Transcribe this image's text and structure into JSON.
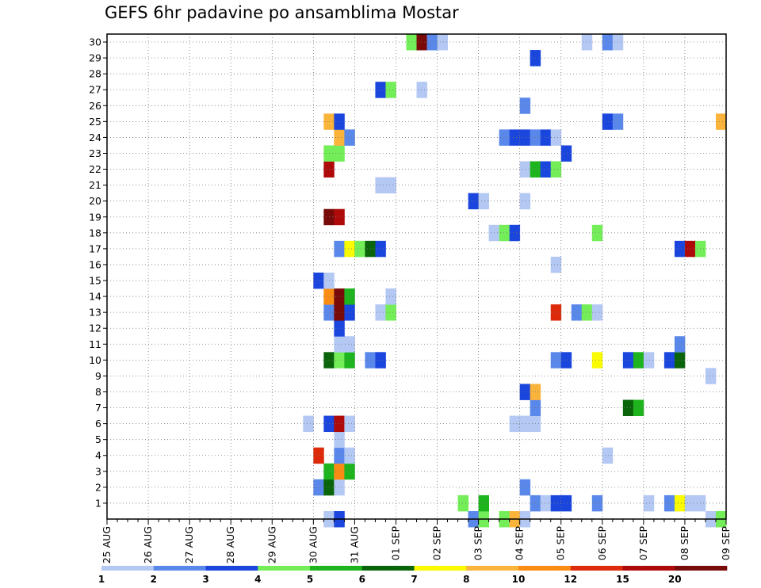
{
  "chart_data": {
    "type": "heatmap",
    "title": "GEFS 6hr padavine po ansamblima Mostar",
    "xlabel": "",
    "ylabel": "",
    "x_tick_labels": [
      "25 AUG",
      "26 AUG",
      "27 AUG",
      "28 AUG",
      "29 AUG",
      "30 AUG",
      "31 AUG",
      "01 SEP",
      "02 SEP",
      "03 SEP",
      "04 SEP",
      "05 SEP",
      "06 SEP",
      "07 SEP",
      "08 SEP",
      "09 SEP"
    ],
    "y_tick_labels": [
      "1",
      "2",
      "3",
      "4",
      "5",
      "6",
      "7",
      "8",
      "9",
      "10",
      "11",
      "12",
      "13",
      "14",
      "15",
      "16",
      "17",
      "18",
      "19",
      "20",
      "21",
      "22",
      "23",
      "24",
      "25",
      "26",
      "27",
      "28",
      "29",
      "30"
    ],
    "x_range_days": [
      0,
      15
    ],
    "y_range_members": [
      0,
      30
    ],
    "grid": true,
    "colorbar": {
      "levels": [
        "1",
        "2",
        "3",
        "4",
        "5",
        "6",
        "7",
        "8",
        "10",
        "12",
        "15",
        "20"
      ],
      "colors": [
        "#b4c8f4",
        "#5a88ea",
        "#1a46de",
        "#74ee58",
        "#1eb41e",
        "#0a640a",
        "#fafa00",
        "#fab43c",
        "#fa8c14",
        "#dc2a0a",
        "#ae0a0a",
        "#780a0a"
      ]
    },
    "cells_note_units": "t = forecast time step index (6 h steps from 25 AUG 00Z), m = ensemble member, c = colour class index into colorbar.colors",
    "cells": [
      {
        "t": 21,
        "m": 0,
        "c": 0
      },
      {
        "t": 22,
        "m": 0,
        "c": 2
      },
      {
        "t": 35,
        "m": 0,
        "c": 1
      },
      {
        "t": 36,
        "m": 0,
        "c": 3
      },
      {
        "t": 38,
        "m": 0,
        "c": 3
      },
      {
        "t": 39,
        "m": 0,
        "c": 7
      },
      {
        "t": 40,
        "m": 0,
        "c": 0
      },
      {
        "t": 58,
        "m": 0,
        "c": 0
      },
      {
        "t": 59,
        "m": 0,
        "c": 3
      },
      {
        "t": 34,
        "m": 1,
        "c": 3
      },
      {
        "t": 36,
        "m": 1,
        "c": 4
      },
      {
        "t": 41,
        "m": 1,
        "c": 1
      },
      {
        "t": 42,
        "m": 1,
        "c": 0
      },
      {
        "t": 43,
        "m": 1,
        "c": 2
      },
      {
        "t": 44,
        "m": 1,
        "c": 2
      },
      {
        "t": 47,
        "m": 1,
        "c": 1
      },
      {
        "t": 52,
        "m": 1,
        "c": 0
      },
      {
        "t": 54,
        "m": 1,
        "c": 1
      },
      {
        "t": 55,
        "m": 1,
        "c": 6
      },
      {
        "t": 56,
        "m": 1,
        "c": 0
      },
      {
        "t": 57,
        "m": 1,
        "c": 0
      },
      {
        "t": 20,
        "m": 2,
        "c": 1
      },
      {
        "t": 21,
        "m": 2,
        "c": 5
      },
      {
        "t": 22,
        "m": 2,
        "c": 0
      },
      {
        "t": 40,
        "m": 2,
        "c": 1
      },
      {
        "t": 21,
        "m": 3,
        "c": 4
      },
      {
        "t": 22,
        "m": 3,
        "c": 8
      },
      {
        "t": 23,
        "m": 3,
        "c": 4
      },
      {
        "t": 20,
        "m": 4,
        "c": 9
      },
      {
        "t": 22,
        "m": 4,
        "c": 1
      },
      {
        "t": 23,
        "m": 4,
        "c": 0
      },
      {
        "t": 48,
        "m": 4,
        "c": 0
      },
      {
        "t": 22,
        "m": 5,
        "c": 0
      },
      {
        "t": 19,
        "m": 6,
        "c": 0
      },
      {
        "t": 21,
        "m": 6,
        "c": 2
      },
      {
        "t": 22,
        "m": 6,
        "c": 10
      },
      {
        "t": 23,
        "m": 6,
        "c": 0
      },
      {
        "t": 39,
        "m": 6,
        "c": 0
      },
      {
        "t": 40,
        "m": 6,
        "c": 0
      },
      {
        "t": 41,
        "m": 6,
        "c": 0
      },
      {
        "t": 41,
        "m": 7,
        "c": 1
      },
      {
        "t": 50,
        "m": 7,
        "c": 5
      },
      {
        "t": 51,
        "m": 7,
        "c": 4
      },
      {
        "t": 40,
        "m": 8,
        "c": 2
      },
      {
        "t": 41,
        "m": 8,
        "c": 7
      },
      {
        "t": 58,
        "m": 9,
        "c": 0
      },
      {
        "t": 21,
        "m": 10,
        "c": 5
      },
      {
        "t": 22,
        "m": 10,
        "c": 3
      },
      {
        "t": 23,
        "m": 10,
        "c": 4
      },
      {
        "t": 25,
        "m": 10,
        "c": 1
      },
      {
        "t": 26,
        "m": 10,
        "c": 2
      },
      {
        "t": 43,
        "m": 10,
        "c": 1
      },
      {
        "t": 44,
        "m": 10,
        "c": 2
      },
      {
        "t": 47,
        "m": 10,
        "c": 6
      },
      {
        "t": 50,
        "m": 10,
        "c": 2
      },
      {
        "t": 51,
        "m": 10,
        "c": 4
      },
      {
        "t": 52,
        "m": 10,
        "c": 0
      },
      {
        "t": 54,
        "m": 10,
        "c": 2
      },
      {
        "t": 55,
        "m": 10,
        "c": 5
      },
      {
        "t": 22,
        "m": 11,
        "c": 0
      },
      {
        "t": 23,
        "m": 11,
        "c": 0
      },
      {
        "t": 55,
        "m": 11,
        "c": 1
      },
      {
        "t": 22,
        "m": 12,
        "c": 2
      },
      {
        "t": 21,
        "m": 13,
        "c": 1
      },
      {
        "t": 22,
        "m": 13,
        "c": 11
      },
      {
        "t": 23,
        "m": 13,
        "c": 2
      },
      {
        "t": 26,
        "m": 13,
        "c": 0
      },
      {
        "t": 27,
        "m": 13,
        "c": 3
      },
      {
        "t": 43,
        "m": 13,
        "c": 9
      },
      {
        "t": 45,
        "m": 13,
        "c": 1
      },
      {
        "t": 46,
        "m": 13,
        "c": 3
      },
      {
        "t": 47,
        "m": 13,
        "c": 0
      },
      {
        "t": 21,
        "m": 14,
        "c": 8
      },
      {
        "t": 22,
        "m": 14,
        "c": 11
      },
      {
        "t": 23,
        "m": 14,
        "c": 4
      },
      {
        "t": 27,
        "m": 14,
        "c": 0
      },
      {
        "t": 20,
        "m": 15,
        "c": 2
      },
      {
        "t": 21,
        "m": 15,
        "c": 0
      },
      {
        "t": 43,
        "m": 16,
        "c": 0
      },
      {
        "t": 22,
        "m": 17,
        "c": 1
      },
      {
        "t": 23,
        "m": 17,
        "c": 6
      },
      {
        "t": 24,
        "m": 17,
        "c": 3
      },
      {
        "t": 25,
        "m": 17,
        "c": 5
      },
      {
        "t": 26,
        "m": 17,
        "c": 2
      },
      {
        "t": 55,
        "m": 17,
        "c": 2
      },
      {
        "t": 56,
        "m": 17,
        "c": 10
      },
      {
        "t": 57,
        "m": 17,
        "c": 3
      },
      {
        "t": 37,
        "m": 18,
        "c": 0
      },
      {
        "t": 38,
        "m": 18,
        "c": 3
      },
      {
        "t": 39,
        "m": 18,
        "c": 2
      },
      {
        "t": 47,
        "m": 18,
        "c": 3
      },
      {
        "t": 21,
        "m": 19,
        "c": 11
      },
      {
        "t": 22,
        "m": 19,
        "c": 10
      },
      {
        "t": 35,
        "m": 20,
        "c": 2
      },
      {
        "t": 36,
        "m": 20,
        "c": 0
      },
      {
        "t": 40,
        "m": 20,
        "c": 0
      },
      {
        "t": 26,
        "m": 21,
        "c": 0
      },
      {
        "t": 27,
        "m": 21,
        "c": 0
      },
      {
        "t": 21,
        "m": 22,
        "c": 10
      },
      {
        "t": 40,
        "m": 22,
        "c": 0
      },
      {
        "t": 41,
        "m": 22,
        "c": 4
      },
      {
        "t": 42,
        "m": 22,
        "c": 2
      },
      {
        "t": 43,
        "m": 22,
        "c": 3
      },
      {
        "t": 21,
        "m": 23,
        "c": 3
      },
      {
        "t": 22,
        "m": 23,
        "c": 3
      },
      {
        "t": 44,
        "m": 23,
        "c": 2
      },
      {
        "t": 22,
        "m": 24,
        "c": 7
      },
      {
        "t": 23,
        "m": 24,
        "c": 1
      },
      {
        "t": 38,
        "m": 24,
        "c": 1
      },
      {
        "t": 39,
        "m": 24,
        "c": 2
      },
      {
        "t": 40,
        "m": 24,
        "c": 2
      },
      {
        "t": 41,
        "m": 24,
        "c": 1
      },
      {
        "t": 42,
        "m": 24,
        "c": 2
      },
      {
        "t": 43,
        "m": 24,
        "c": 0
      },
      {
        "t": 21,
        "m": 25,
        "c": 7
      },
      {
        "t": 22,
        "m": 25,
        "c": 2
      },
      {
        "t": 48,
        "m": 25,
        "c": 2
      },
      {
        "t": 49,
        "m": 25,
        "c": 1
      },
      {
        "t": 59,
        "m": 25,
        "c": 7
      },
      {
        "t": 40,
        "m": 26,
        "c": 1
      },
      {
        "t": 26,
        "m": 27,
        "c": 2
      },
      {
        "t": 27,
        "m": 27,
        "c": 3
      },
      {
        "t": 30,
        "m": 27,
        "c": 0
      },
      {
        "t": 41,
        "m": 29,
        "c": 2
      },
      {
        "t": 29,
        "m": 30,
        "c": 3
      },
      {
        "t": 30,
        "m": 30,
        "c": 11
      },
      {
        "t": 31,
        "m": 30,
        "c": 1
      },
      {
        "t": 32,
        "m": 30,
        "c": 0
      },
      {
        "t": 46,
        "m": 30,
        "c": 0
      },
      {
        "t": 48,
        "m": 30,
        "c": 1
      },
      {
        "t": 49,
        "m": 30,
        "c": 0
      }
    ]
  }
}
